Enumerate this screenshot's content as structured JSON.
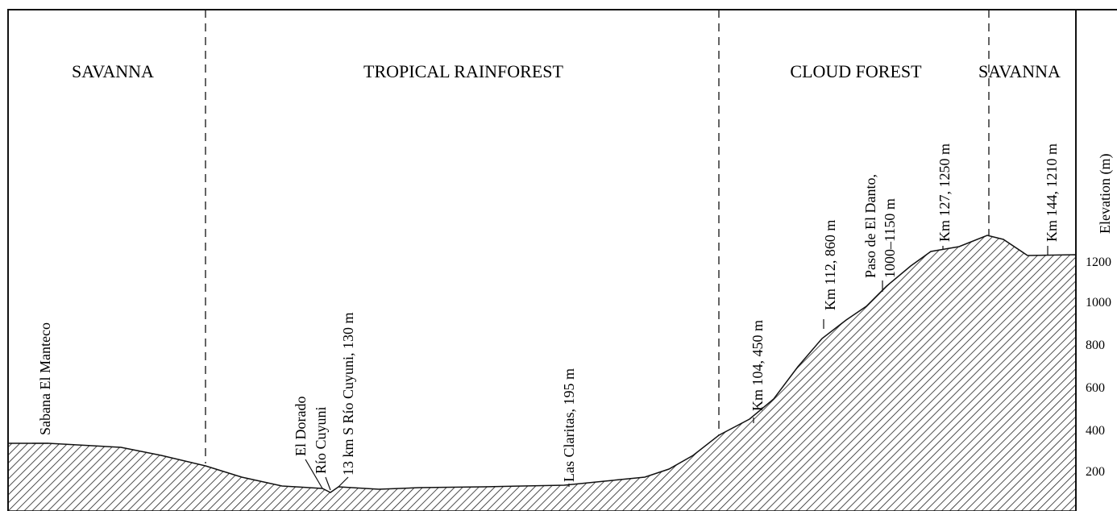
{
  "zones": [
    "SAVANNA",
    "TROPICAL RAINFOREST",
    "CLOUD FOREST",
    "SAVANNA"
  ],
  "landmarks": [
    "Sabana El Manteco",
    "El Dorado",
    "Río Cuyuni",
    "13 km S Río Cuyuni, 130 m",
    "Las Claritas, 195 m",
    "Km 104, 450 m",
    "Km 112, 860 m",
    "Paso de El Danto,",
    "1000–1150 m",
    "Km 127, 1250 m",
    "Km 144, 1210 m"
  ],
  "axis": {
    "label": "Elevation (m)",
    "ticks": [
      1200,
      1000,
      800,
      600,
      400,
      200
    ]
  }
}
